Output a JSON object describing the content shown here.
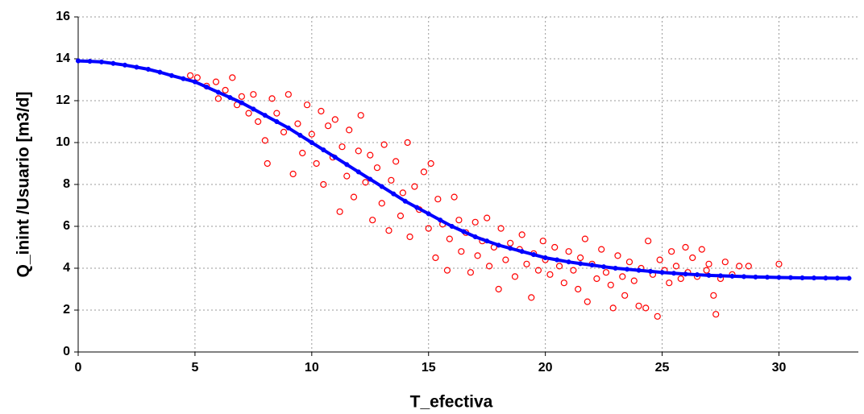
{
  "chart_data": {
    "type": "scatter",
    "xlabel": "T_efectiva",
    "ylabel": "Q_inint /Usuario [m3/d]",
    "xlim": [
      0,
      33.4
    ],
    "ylim": [
      0,
      16
    ],
    "xticks": [
      0,
      5,
      10,
      15,
      20,
      25,
      30
    ],
    "yticks": [
      0,
      2,
      4,
      6,
      8,
      10,
      12,
      14,
      16
    ],
    "grid": true,
    "series": [
      {
        "color": "#ff0000",
        "marker": "open",
        "x": [
          4.8,
          5.1,
          5.5,
          5.9,
          6.0,
          6.3,
          6.6,
          6.8,
          7.0,
          7.3,
          7.5,
          7.7,
          8.0,
          8.1,
          8.3,
          8.5,
          8.8,
          9.0,
          9.2,
          9.4,
          9.6,
          9.8,
          10.0,
          10.2,
          10.4,
          10.5,
          10.7,
          10.9,
          11.0,
          11.2,
          11.3,
          11.5,
          11.6,
          11.8,
          12.0,
          12.1,
          12.3,
          12.5,
          12.6,
          12.8,
          13.0,
          13.1,
          13.3,
          13.4,
          13.6,
          13.8,
          13.9,
          14.1,
          14.2,
          14.4,
          14.6,
          14.8,
          15.0,
          15.1,
          15.3,
          15.4,
          15.6,
          15.8,
          15.9,
          16.1,
          16.3,
          16.4,
          16.6,
          16.8,
          17.0,
          17.1,
          17.3,
          17.5,
          17.6,
          17.8,
          18.0,
          18.1,
          18.3,
          18.5,
          18.7,
          18.9,
          19.0,
          19.2,
          19.4,
          19.5,
          19.7,
          19.9,
          20.0,
          20.2,
          20.4,
          20.6,
          20.8,
          21.0,
          21.2,
          21.4,
          21.5,
          21.7,
          21.8,
          22.0,
          22.2,
          22.4,
          22.6,
          22.8,
          22.9,
          23.1,
          23.3,
          23.4,
          23.6,
          23.8,
          24.0,
          24.1,
          24.3,
          24.4,
          24.6,
          24.8,
          24.9,
          25.1,
          25.3,
          25.4,
          25.6,
          25.8,
          26.0,
          26.1,
          26.3,
          26.5,
          26.7,
          26.9,
          27.0,
          27.2,
          27.3,
          27.5,
          27.7,
          28.0,
          28.3,
          28.7,
          30.0
        ],
        "values": [
          13.2,
          13.1,
          12.7,
          12.9,
          12.1,
          12.5,
          13.1,
          11.8,
          12.2,
          11.4,
          12.3,
          11.0,
          10.1,
          9.0,
          12.1,
          11.4,
          10.5,
          12.3,
          8.5,
          10.9,
          9.5,
          11.8,
          10.4,
          9.0,
          11.5,
          8.0,
          10.8,
          9.3,
          11.1,
          6.7,
          9.8,
          8.4,
          10.6,
          7.4,
          9.6,
          11.3,
          8.1,
          9.4,
          6.3,
          8.8,
          7.1,
          9.9,
          5.8,
          8.2,
          9.1,
          6.5,
          7.6,
          10.0,
          5.5,
          7.9,
          6.8,
          8.6,
          5.9,
          9.0,
          4.5,
          7.3,
          6.1,
          3.9,
          5.4,
          7.4,
          6.3,
          4.8,
          5.7,
          3.8,
          6.2,
          4.6,
          5.3,
          6.4,
          4.1,
          5.0,
          3.0,
          5.9,
          4.4,
          5.2,
          3.6,
          4.9,
          5.6,
          4.2,
          2.6,
          4.7,
          3.9,
          5.3,
          4.4,
          3.7,
          5.0,
          4.1,
          3.3,
          4.8,
          3.9,
          3.0,
          4.5,
          5.4,
          2.4,
          4.2,
          3.5,
          4.9,
          3.8,
          3.2,
          2.1,
          4.6,
          3.6,
          2.7,
          4.3,
          3.4,
          2.2,
          4.0,
          2.1,
          5.3,
          3.7,
          1.7,
          4.4,
          3.9,
          3.3,
          4.8,
          4.1,
          3.5,
          5.0,
          3.8,
          4.5,
          3.6,
          4.9,
          3.9,
          4.2,
          2.7,
          1.8,
          3.5,
          4.3,
          3.7,
          4.1,
          4.1,
          4.2
        ]
      },
      {
        "color": "#0000ff",
        "marker": "filled",
        "x": [
          0,
          0.5,
          1,
          1.5,
          2,
          2.5,
          3,
          3.5,
          4,
          4.5,
          5,
          5.5,
          6,
          6.5,
          7,
          7.5,
          8,
          8.5,
          9,
          9.5,
          10,
          10.5,
          11,
          11.5,
          12,
          12.5,
          13,
          13.5,
          14,
          14.5,
          15,
          15.5,
          16,
          16.5,
          17,
          17.5,
          18,
          18.5,
          19,
          19.5,
          20,
          20.5,
          21,
          21.5,
          22,
          22.5,
          23,
          23.5,
          24,
          24.5,
          25,
          25.5,
          26,
          26.5,
          27,
          27.5,
          28,
          28.5,
          29,
          29.5,
          30,
          30.5,
          31,
          31.5,
          32,
          32.5,
          33
        ],
        "values": [
          13.9,
          13.88,
          13.85,
          13.78,
          13.7,
          13.6,
          13.5,
          13.36,
          13.2,
          13.05,
          12.9,
          12.65,
          12.4,
          12.15,
          11.9,
          11.6,
          11.3,
          11.0,
          10.7,
          10.35,
          10.0,
          9.65,
          9.3,
          8.95,
          8.6,
          8.25,
          7.9,
          7.55,
          7.2,
          6.9,
          6.6,
          6.3,
          6.0,
          5.75,
          5.5,
          5.3,
          5.1,
          4.95,
          4.8,
          4.65,
          4.5,
          4.4,
          4.3,
          4.22,
          4.15,
          4.07,
          4.0,
          3.95,
          3.9,
          3.85,
          3.8,
          3.76,
          3.72,
          3.69,
          3.66,
          3.64,
          3.62,
          3.6,
          3.58,
          3.57,
          3.56,
          3.55,
          3.54,
          3.535,
          3.53,
          3.525,
          3.52
        ]
      }
    ]
  }
}
